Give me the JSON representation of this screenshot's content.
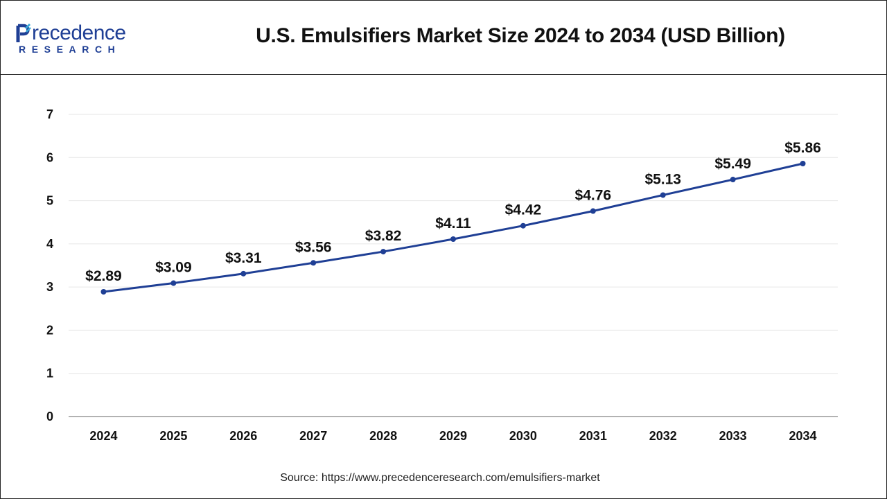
{
  "header": {
    "logo_word": "recedence",
    "logo_sub": "RESEARCH",
    "title": "U.S. Emulsifiers Market Size 2024 to 2034 (USD Billion)"
  },
  "source": "Source: https://www.precedenceresearch.com/emulsifiers-market",
  "colors": {
    "line": "#1f3f95",
    "grid": "#e6e6e6",
    "axis": "#999999",
    "brand": "#1f3f95"
  },
  "chart_data": {
    "type": "line",
    "title": "U.S. Emulsifiers Market Size 2024 to 2034 (USD Billion)",
    "categories": [
      "2024",
      "2025",
      "2026",
      "2027",
      "2028",
      "2029",
      "2030",
      "2031",
      "2032",
      "2033",
      "2034"
    ],
    "series": [
      {
        "values": [
          2.89,
          3.09,
          3.31,
          3.56,
          3.82,
          4.11,
          4.42,
          4.76,
          5.13,
          5.49,
          5.86
        ]
      }
    ],
    "data_labels": [
      "$2.89",
      "$3.09",
      "$3.31",
      "$3.56",
      "$3.82",
      "$4.11",
      "$4.42",
      "$4.76",
      "$5.13",
      "$5.49",
      "$5.86"
    ],
    "y_ticks": [
      "0",
      "1",
      "2",
      "3",
      "4",
      "5",
      "6",
      "7"
    ],
    "ylim": [
      0,
      7
    ],
    "grid": true,
    "legend": "none"
  }
}
